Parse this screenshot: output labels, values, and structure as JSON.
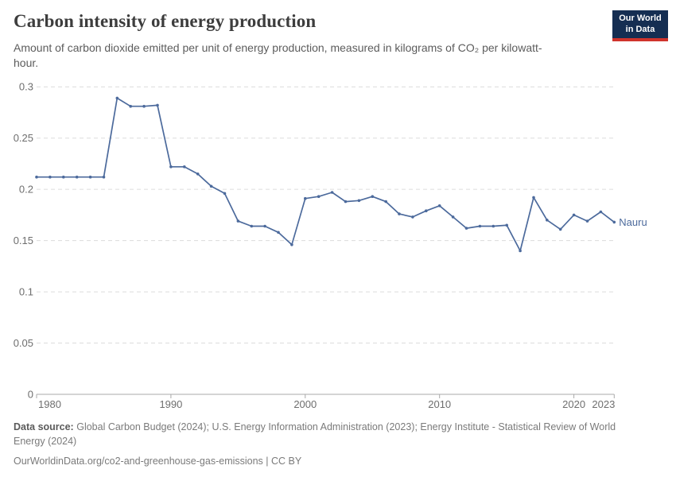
{
  "header": {
    "title": "Carbon intensity of energy production",
    "subtitle": "Amount of carbon dioxide emitted per unit of energy production, measured in kilograms of CO₂ per kilowatt-hour.",
    "logo": {
      "line1": "Our World",
      "line2": "in Data"
    }
  },
  "chart_data": {
    "type": "line",
    "title": "Carbon intensity of energy production",
    "xlabel": "",
    "ylabel": "kilograms of CO₂ per kilowatt-hour",
    "ylim": [
      0,
      0.3
    ],
    "yticks": [
      0,
      0.05,
      0.1,
      0.15,
      0.2,
      0.25,
      0.3
    ],
    "xticks": [
      1980,
      1990,
      2000,
      2010,
      2020,
      2023
    ],
    "grid": "horizontal dashed",
    "legend_position": "end-of-line label",
    "x": [
      1980,
      1981,
      1982,
      1983,
      1984,
      1985,
      1986,
      1987,
      1988,
      1989,
      1990,
      1991,
      1992,
      1993,
      1994,
      1995,
      1996,
      1997,
      1998,
      1999,
      2000,
      2001,
      2002,
      2003,
      2004,
      2005,
      2006,
      2007,
      2008,
      2009,
      2010,
      2011,
      2012,
      2013,
      2014,
      2015,
      2016,
      2017,
      2018,
      2019,
      2020,
      2021,
      2022,
      2023
    ],
    "series": [
      {
        "name": "Nauru",
        "color": "#4c6a9c",
        "values": [
          0.212,
          0.212,
          0.212,
          0.212,
          0.212,
          0.212,
          0.289,
          0.281,
          0.281,
          0.282,
          0.222,
          0.222,
          0.215,
          0.203,
          0.196,
          0.169,
          0.164,
          0.164,
          0.158,
          0.146,
          0.191,
          0.193,
          0.197,
          0.188,
          0.189,
          0.193,
          0.188,
          0.176,
          0.173,
          0.179,
          0.184,
          0.173,
          0.162,
          0.164,
          0.164,
          0.165,
          0.14,
          0.192,
          0.17,
          0.161,
          0.175,
          0.169,
          0.178,
          0.168
        ]
      }
    ]
  },
  "footer": {
    "source_label": "Data source:",
    "source_text": "Global Carbon Budget (2024); U.S. Energy Information Administration (2023); Energy Institute - Statistical Review of World Energy (2024)",
    "link_text": "OurWorldinData.org/co2-and-greenhouse-gas-emissions | CC BY"
  },
  "colors": {
    "line": "#4c6a9c",
    "grid": "#dcdcdc",
    "axis": "#a9a9a9",
    "tick_label": "#6e6e6e",
    "logo_bg": "#152e52",
    "logo_stripe": "#d0342c"
  }
}
